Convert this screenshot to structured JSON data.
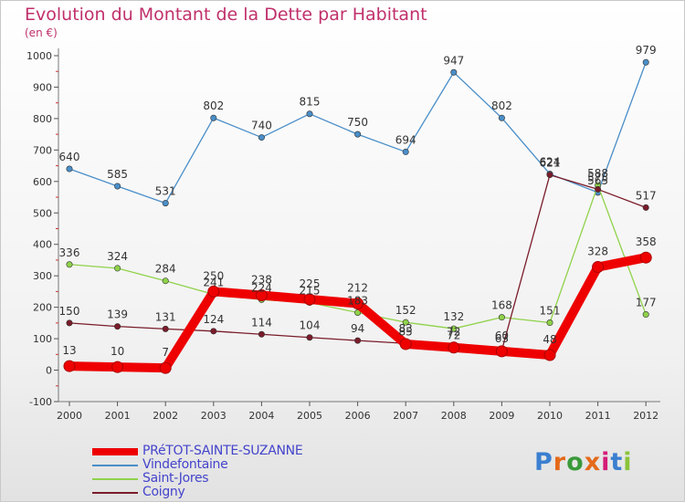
{
  "chart_data": {
    "type": "line",
    "title": "Evolution du Montant de la Dette par Habitant",
    "subtitle": "(en €)",
    "x": [
      "2000",
      "2001",
      "2002",
      "2003",
      "2004",
      "2005",
      "2006",
      "2007",
      "2008",
      "2009",
      "2010",
      "2011",
      "2012"
    ],
    "yticks": [
      "1000",
      "900",
      "800",
      "700",
      "600",
      "500",
      "400",
      "300",
      "200",
      "100",
      "0",
      "-100"
    ],
    "ylim": [
      -100,
      1000
    ],
    "grid": false,
    "legend_position": "bottom-left",
    "series": [
      {
        "name": "Vindefontaine",
        "color": "#4a8ec8",
        "values": [
          640,
          585,
          531,
          802,
          740,
          815,
          750,
          694,
          947,
          802,
          624,
          565,
          979
        ],
        "labels": [
          "640",
          "585",
          "531",
          "802",
          "740",
          "815",
          "750",
          "694",
          "947",
          "802",
          "624",
          "565",
          "979"
        ]
      },
      {
        "name": "Saint-Jores",
        "color": "#8fd24a",
        "values": [
          336,
          324,
          284,
          241,
          224,
          215,
          183,
          152,
          132,
          168,
          151,
          588,
          177
        ],
        "labels": [
          "336",
          "324",
          "284",
          "241",
          "224",
          "215",
          "183",
          "152",
          "132",
          "168",
          "151",
          "588",
          "177"
        ]
      },
      {
        "name": "Coigny",
        "color": "#7a1c2a",
        "values": [
          150,
          139,
          131,
          124,
          114,
          104,
          94,
          85,
          72,
          63,
          621,
          575,
          517
        ],
        "labels": [
          "150",
          "139",
          "131",
          "124",
          "114",
          "104",
          "94",
          "85",
          "72",
          "63",
          "621",
          "575",
          "517"
        ]
      },
      {
        "name": "PRéTOT-SAINTE-SUZANNE",
        "color": "#ee0000",
        "values": [
          13,
          10,
          7,
          250,
          238,
          225,
          212,
          83,
          72,
          60,
          48,
          328,
          358
        ],
        "labels": [
          "13",
          "10",
          "7",
          "250",
          "238",
          "225",
          "212",
          "83",
          "72",
          "60",
          "48",
          "328",
          "358"
        ]
      }
    ]
  },
  "legend": [
    {
      "label": "PRéTOT-SAINTE-SUZANNE",
      "color": "#ee0000"
    },
    {
      "label": "Vindefontaine",
      "color": "#4a8ec8"
    },
    {
      "label": "Saint-Jores",
      "color": "#8fd24a"
    },
    {
      "label": "Coigny",
      "color": "#7a1c2a"
    }
  ],
  "logo": {
    "text": "Proxiti",
    "letter_colors": [
      "#3b7fd0",
      "#e46a1a",
      "#3a9a3a",
      "#e46a1a",
      "#d41c78",
      "#3b7fd0",
      "#8bc43a"
    ]
  }
}
